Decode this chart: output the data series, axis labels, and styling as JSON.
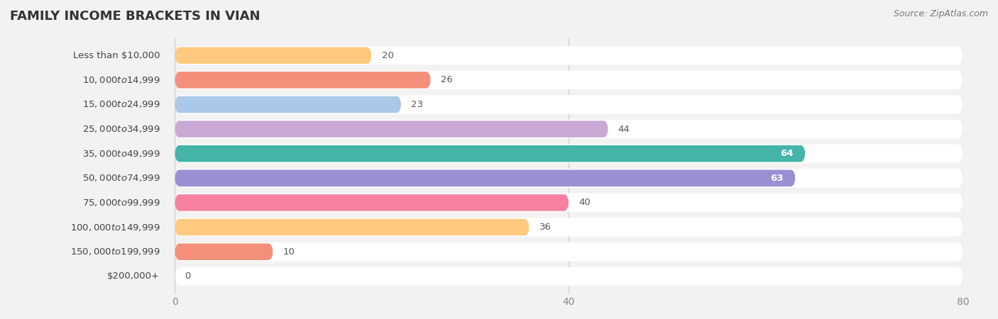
{
  "title": "FAMILY INCOME BRACKETS IN VIAN",
  "source": "Source: ZipAtlas.com",
  "categories": [
    "Less than $10,000",
    "$10,000 to $14,999",
    "$15,000 to $24,999",
    "$25,000 to $34,999",
    "$35,000 to $49,999",
    "$50,000 to $74,999",
    "$75,000 to $99,999",
    "$100,000 to $149,999",
    "$150,000 to $199,999",
    "$200,000+"
  ],
  "values": [
    20,
    26,
    23,
    44,
    64,
    63,
    40,
    36,
    10,
    0
  ],
  "bar_colors": [
    "#FFCA80",
    "#F4907A",
    "#AAC8E8",
    "#C9A8D4",
    "#45B5AA",
    "#9B8FD4",
    "#F780A0",
    "#FFCA80",
    "#F4907A",
    "#AAC8E8"
  ],
  "bg_color": "#f2f2f2",
  "row_bg_color": "#ffffff",
  "xlim": [
    0,
    80
  ],
  "xticks": [
    0,
    40,
    80
  ],
  "title_fontsize": 13,
  "label_fontsize": 9.5,
  "value_fontsize": 9.5
}
